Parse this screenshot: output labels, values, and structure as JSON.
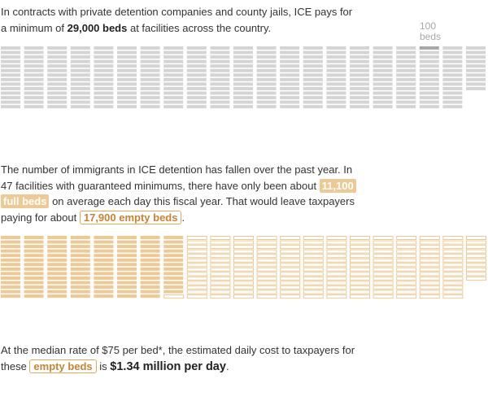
{
  "intro": {
    "line1": "In contracts with private detention companies and county jails, ICE pays for",
    "line2_a": "a minimum of ",
    "line2_b": "29,000 beds",
    "line2_c": " at facilities across the country."
  },
  "legend": {
    "value_label": "100",
    "unit_label": "beds"
  },
  "middle": {
    "line1": "The number of immigrants in ICE detention has fallen over the past year. In",
    "line2_a": "47 facilities with guaranteed minimums, there have only been about ",
    "hl_full_1": "11,100",
    "hl_full_2": "full beds",
    "line3_b": " on average each day this fiscal year. That would leave taxpayers",
    "line4_a": "paying for about ",
    "hl_empty": "17,900 empty beds",
    "line4_c": "."
  },
  "bottom": {
    "line1": "At the median rate of $75 per bed*, the estimated daily cost to taxpayers for",
    "line2_a": "these ",
    "hl_empty": "empty beds",
    "line2_b": " is ",
    "cost": "$1.34 million per day",
    "line2_c": "."
  },
  "chart_data": [
    {
      "type": "waffle",
      "unit_beds": 100,
      "total_beds": 29000,
      "series": [
        {
          "name": "",
          "beds": 29000,
          "color": "#d4d4d4"
        }
      ],
      "legend_square_color": "#a8a8a8"
    },
    {
      "type": "waffle",
      "unit_beds": 100,
      "total_beds": 29000,
      "series": [
        {
          "name": "full beds",
          "beds": 11100,
          "color": "#efc994"
        },
        {
          "name": "empty beds",
          "beds": 17900,
          "color": "#ffffff",
          "stroke": "#efc994"
        }
      ]
    }
  ]
}
